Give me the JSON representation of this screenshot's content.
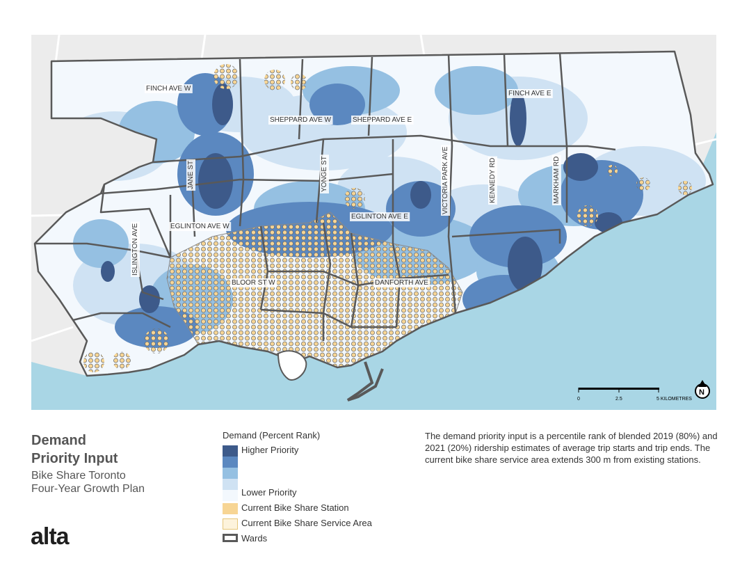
{
  "map": {
    "road_labels": [
      "FINCH AVE W",
      "SHEPPARD AVE W",
      "SHEPPARD AVE E",
      "FINCH AVE E",
      "JANE ST",
      "YONGE ST",
      "VICTORIA PARK AVE",
      "KENNEDY RD",
      "MARKHAM RD",
      "EGLINTON AVE W",
      "EGLINTON AVE E",
      "ISLINGTON AVE",
      "BLOOR ST W",
      "DANFORTH AVE"
    ],
    "scale_bar": {
      "ticks": [
        "0",
        "2.5",
        "5 KILOMETRES"
      ]
    },
    "north_arrow": "N",
    "colors": {
      "water": "#a9d6e5",
      "land": "#ececec",
      "ward_border": "#595959",
      "higher": "#3d5a8a",
      "high": "#5b88c0",
      "low": "#95c0e2",
      "lower": "#cfe2f3",
      "station": "#f7d594"
    }
  },
  "title": {
    "line1": "Demand",
    "line2": "Priority Input"
  },
  "subtitle": {
    "line1": "Bike Share Toronto",
    "line2": "Four-Year Growth Plan"
  },
  "logo": "alta",
  "legend": {
    "title": "Demand (Percent Rank)",
    "items": [
      {
        "label": "Higher Priority",
        "color": "#3d5a8a"
      },
      {
        "label": "",
        "color": "#5b88c0"
      },
      {
        "label": "",
        "color": "#95c0e2"
      },
      {
        "label": "",
        "color": "#cfe2f3"
      },
      {
        "label": "Lower Priority",
        "color": "#f3f8fd"
      },
      {
        "label": "Current Bike Share Station",
        "color": "#f7d594"
      },
      {
        "label": "Current Bike Share Service Area",
        "color": "#fdf3dc"
      },
      {
        "label": "Wards",
        "color": "#ffffff"
      }
    ]
  },
  "description": "The demand priority input is a percentile rank of blended 2019 (80%) and 2021 (20%) ridership estimates of average trip starts and trip ends. The current bike share service area extends 300 m from existing stations."
}
